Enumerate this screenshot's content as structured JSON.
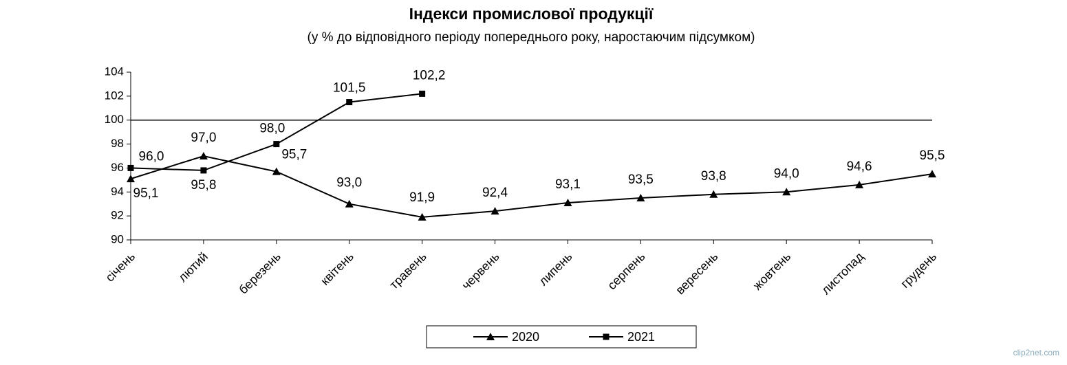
{
  "chart_data": {
    "type": "line",
    "title": "Індекси промислової продукції",
    "subtitle": "(у % до відповідного періоду попереднього року, наростаючим підсумком)",
    "categories": [
      "січень",
      "лютий",
      "березень",
      "квітень",
      "травень",
      "червень",
      "липень",
      "серпень",
      "вересень",
      "жовтень",
      "листопад",
      "грудень"
    ],
    "series": [
      {
        "name": "2020",
        "color": "#000000",
        "marker": "triangle",
        "values": [
          95.1,
          97.0,
          95.7,
          93.0,
          91.9,
          92.4,
          93.1,
          93.5,
          93.8,
          94.0,
          94.6,
          95.5
        ],
        "value_labels": [
          "95,1",
          "97,0",
          "95,7",
          "93,0",
          "91,9",
          "92,4",
          "93,1",
          "93,5",
          "93,8",
          "94,0",
          "94,6",
          "95,5"
        ]
      },
      {
        "name": "2021",
        "color": "#000000",
        "marker": "square",
        "values": [
          96.0,
          95.8,
          98.0,
          101.5,
          102.2,
          null,
          null,
          null,
          null,
          null,
          null,
          null
        ],
        "value_labels": [
          "96,0",
          "95,8",
          "98,0",
          "101,5",
          "102,2",
          null,
          null,
          null,
          null,
          null,
          null,
          null
        ]
      }
    ],
    "hline": 100,
    "ylim": [
      90,
      104
    ],
    "yticks": [
      90,
      92,
      94,
      96,
      98,
      100,
      102,
      104
    ],
    "legend": "bottom",
    "watermark": "clip2net.com"
  }
}
